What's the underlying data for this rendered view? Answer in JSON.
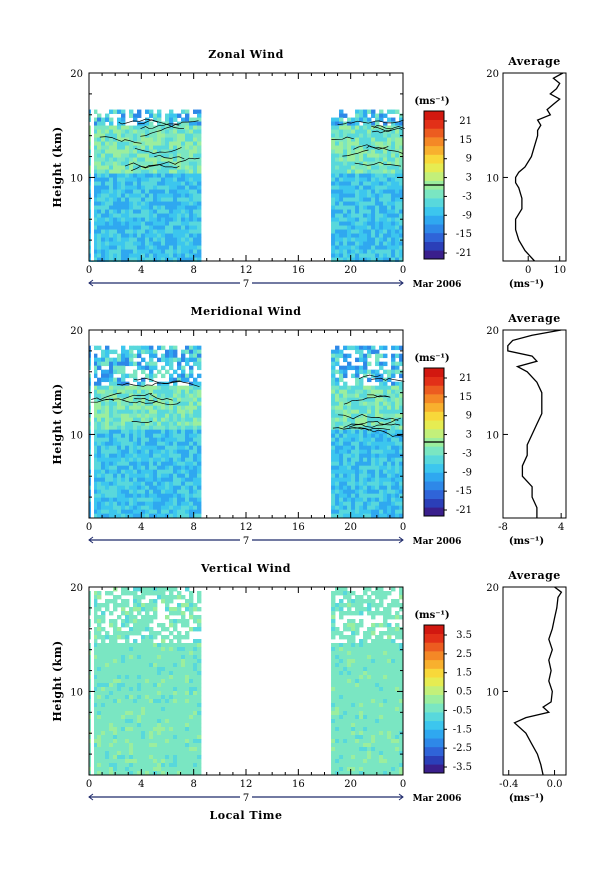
{
  "figure": {
    "x_axis_label": "Local Time",
    "date_label": "Mar 2006",
    "day_label": "7",
    "average_title": "Average",
    "unit_label": "(ms⁻¹)",
    "y_axis_label": "Height (km)"
  },
  "colors": {
    "scale": [
      "#3a1f8c",
      "#2b3fb8",
      "#2f64d8",
      "#2e88e8",
      "#2fa8f0",
      "#3cc6ee",
      "#58d8dc",
      "#7ae6c2",
      "#9bee9e",
      "#c3f07a",
      "#e6ec52",
      "#f8d83a",
      "#f8b02e",
      "#f48826",
      "#ec5c20",
      "#e23018",
      "#d21810"
    ]
  },
  "chart_data": [
    {
      "type": "heatmap",
      "title": "Zonal Wind",
      "ylabel": "Height (km)",
      "xlabel": "",
      "xlim": [
        0,
        24
      ],
      "ylim": [
        2,
        20
      ],
      "x_ticks": [
        "0",
        "4",
        "8",
        "12",
        "16",
        "20",
        "0"
      ],
      "y_ticks": [
        "10",
        "20"
      ],
      "data_coverage_hours": [
        [
          0,
          8.5
        ],
        [
          18.5,
          24
        ]
      ],
      "max_data_height_km": 16.5,
      "colorbar": {
        "unit": "(ms⁻¹)",
        "labels": [
          "21",
          "15",
          "9",
          "3",
          "-3",
          "-9",
          "-15",
          "-21"
        ],
        "range": [
          -24,
          24
        ]
      },
      "contour_level": 0,
      "average_profile": {
        "title": "Average",
        "xlabel": "(ms⁻¹)",
        "x_ticks": [
          "0",
          "10"
        ],
        "y_ticks": [
          "10",
          "20"
        ],
        "xlim": [
          -8,
          12
        ],
        "heights": [
          2,
          3,
          4,
          5,
          6,
          7,
          8,
          9,
          9.5,
          10,
          10.5,
          11,
          12,
          13,
          14,
          14.5,
          15,
          15.5,
          16,
          16.5,
          17,
          17.5,
          18,
          18.5,
          19,
          19.5,
          20
        ],
        "values": [
          2,
          -1,
          -3,
          -4,
          -4,
          -2,
          -2,
          -3,
          -4,
          -4,
          -3,
          -1,
          1,
          2,
          3,
          3,
          4,
          3,
          7,
          6,
          8,
          10,
          7,
          9,
          10,
          8,
          11
        ]
      }
    },
    {
      "type": "heatmap",
      "title": "Meridional Wind",
      "ylabel": "Height (km)",
      "xlabel": "",
      "xlim": [
        0,
        24
      ],
      "ylim": [
        2,
        20
      ],
      "x_ticks": [
        "0",
        "4",
        "8",
        "12",
        "16",
        "20",
        "0"
      ],
      "y_ticks": [
        "10",
        "20"
      ],
      "data_coverage_hours": [
        [
          0,
          8.5
        ],
        [
          18.5,
          24
        ]
      ],
      "max_data_height_km": 18.5,
      "colorbar": {
        "unit": "(ms⁻¹)",
        "labels": [
          "21",
          "15",
          "9",
          "3",
          "-3",
          "-9",
          "-15",
          "-21"
        ],
        "range": [
          -24,
          24
        ]
      },
      "contour_level": 0,
      "average_profile": {
        "title": "Average",
        "xlabel": "(ms⁻¹)",
        "x_ticks": [
          "-8",
          "4"
        ],
        "y_ticks": [
          "10",
          "20"
        ],
        "xlim": [
          -8,
          5
        ],
        "heights": [
          2,
          3,
          4,
          5,
          6,
          7,
          8,
          9,
          10,
          11,
          12,
          13,
          14,
          15,
          16,
          16.5,
          17,
          17.5,
          18,
          18.5,
          19,
          19.5,
          20
        ],
        "values": [
          -1,
          -1,
          -2,
          -2,
          -4,
          -4,
          -3,
          -3,
          -2,
          -1,
          0,
          0,
          0,
          -1,
          -3,
          -5,
          -1,
          -2,
          -7,
          -7,
          -6,
          -2,
          4
        ]
      }
    },
    {
      "type": "heatmap",
      "title": "Vertical Wind",
      "ylabel": "Height (km)",
      "xlabel": "Local Time",
      "xlim": [
        0,
        24
      ],
      "ylim": [
        2,
        20
      ],
      "x_ticks": [
        "0",
        "4",
        "8",
        "12",
        "16",
        "20",
        "0"
      ],
      "y_ticks": [
        "10",
        "20"
      ],
      "data_coverage_hours": [
        [
          0,
          8.5
        ],
        [
          18.5,
          24
        ]
      ],
      "max_data_height_km": 20,
      "colorbar": {
        "unit": "(ms⁻¹)",
        "labels": [
          "3.5",
          "2.5",
          "1.5",
          "0.5",
          "-0.5",
          "-1.5",
          "-2.5",
          "-3.5"
        ],
        "range": [
          -4,
          4
        ]
      },
      "contour_level": null,
      "average_profile": {
        "title": "Average",
        "xlabel": "(ms⁻¹)",
        "x_ticks": [
          "-0.4",
          "0.0"
        ],
        "y_ticks": [
          "10",
          "20"
        ],
        "xlim": [
          -0.45,
          0.1
        ],
        "heights": [
          2,
          3,
          4,
          5,
          6,
          7,
          7.5,
          8,
          8.5,
          9,
          10,
          11,
          12,
          13,
          14,
          15,
          16,
          17,
          18,
          19,
          19.5,
          20
        ],
        "values": [
          -0.1,
          -0.12,
          -0.15,
          -0.2,
          -0.25,
          -0.35,
          -0.25,
          -0.05,
          -0.1,
          -0.03,
          -0.02,
          -0.05,
          -0.03,
          -0.05,
          -0.02,
          -0.05,
          -0.02,
          0.0,
          0.02,
          0.03,
          0.06,
          0.0
        ]
      }
    }
  ]
}
